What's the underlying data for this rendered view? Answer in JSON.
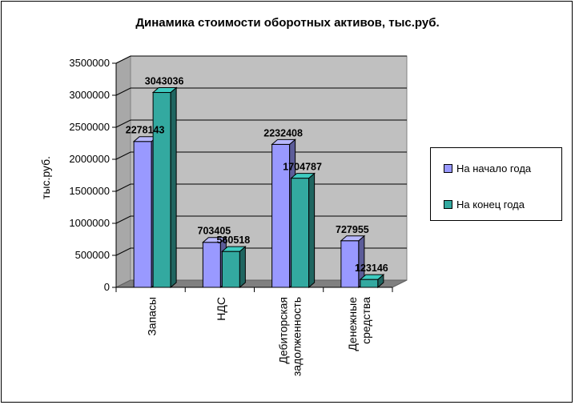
{
  "chart_data": {
    "type": "bar",
    "title": "Динамика стоимости оборотных активов, тыс.руб.",
    "ylabel": "тыс.руб.",
    "xlabel": "",
    "ylim": [
      0,
      3500000
    ],
    "yticks": [
      0,
      500000,
      1000000,
      1500000,
      2000000,
      2500000,
      3000000,
      3500000
    ],
    "categories": [
      [
        "Запасы"
      ],
      [
        "НДС"
      ],
      [
        "Дебиторская",
        "задолженность"
      ],
      [
        "Денежные",
        "средства"
      ]
    ],
    "series": [
      {
        "name": "На начало года",
        "values": [
          2278143,
          703405,
          2232408,
          727955
        ],
        "color": "#9999ff"
      },
      {
        "name": "На конец года",
        "values": [
          3043036,
          560518,
          1704787,
          123146
        ],
        "color": "#33a9a0"
      }
    ],
    "legend_position": "right",
    "grid": true,
    "style": "3d"
  }
}
